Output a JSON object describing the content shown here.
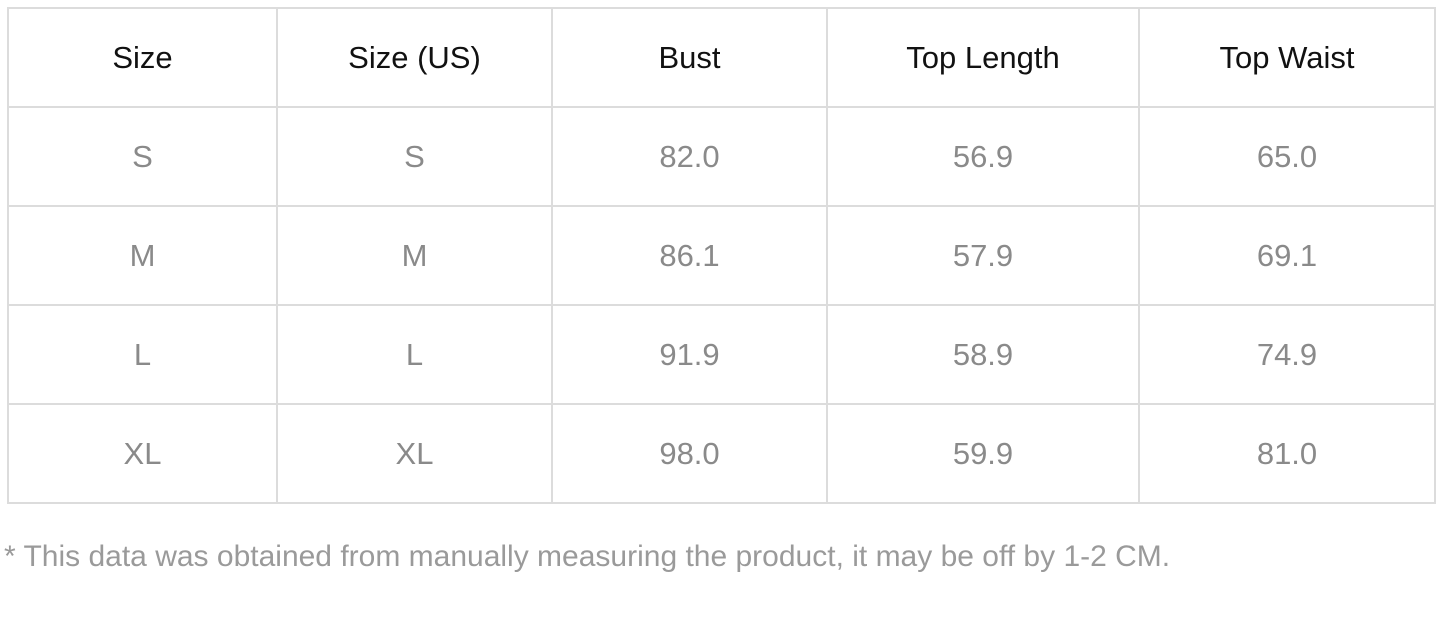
{
  "table": {
    "headers": [
      "Size",
      "Size (US)",
      "Bust",
      "Top Length",
      "Top Waist"
    ],
    "rows": [
      [
        "S",
        "S",
        "82.0",
        "56.9",
        "65.0"
      ],
      [
        "M",
        "M",
        "86.1",
        "57.9",
        "69.1"
      ],
      [
        "L",
        "L",
        "91.9",
        "58.9",
        "74.9"
      ],
      [
        "XL",
        "XL",
        "98.0",
        "59.9",
        "81.0"
      ]
    ]
  },
  "footnote": "* This data was obtained from manually measuring the product, it may be off by 1-2 CM."
}
